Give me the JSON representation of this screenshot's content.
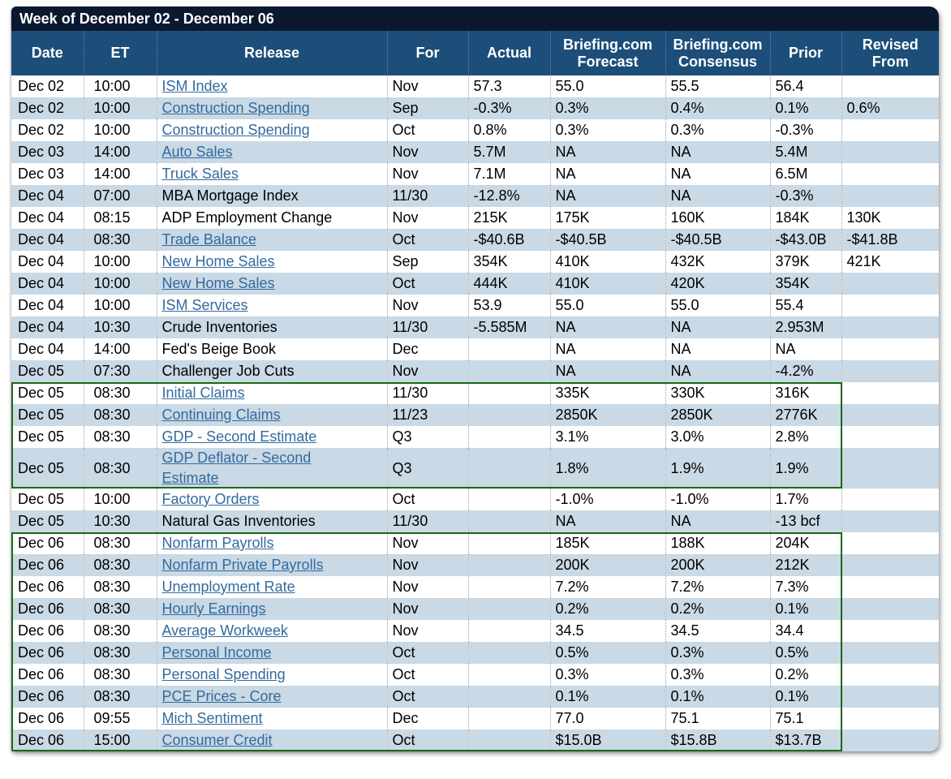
{
  "calendar": {
    "title": "Week of December 02 - December 06",
    "columns": [
      [
        "Date"
      ],
      [
        "ET"
      ],
      [
        "Release"
      ],
      [
        "For"
      ],
      [
        "Actual"
      ],
      [
        "Briefing.com",
        "Forecast"
      ],
      [
        "Briefing.com",
        "Consensus"
      ],
      [
        "Prior"
      ],
      [
        "Revised",
        "From"
      ]
    ],
    "rows": [
      {
        "date": "Dec 02",
        "et": "10:00",
        "release": "ISM Index",
        "is_link": true,
        "for_period": "Nov",
        "actual": "57.3",
        "forecast": "55.0",
        "consensus": "55.5",
        "prior": "56.4",
        "revised_from": ""
      },
      {
        "date": "Dec 02",
        "et": "10:00",
        "release": "Construction Spending",
        "is_link": true,
        "for_period": "Sep",
        "actual": "-0.3%",
        "forecast": "0.3%",
        "consensus": "0.4%",
        "prior": "0.1%",
        "revised_from": "0.6%"
      },
      {
        "date": "Dec 02",
        "et": "10:00",
        "release": "Construction Spending",
        "is_link": true,
        "for_period": "Oct",
        "actual": "0.8%",
        "forecast": "0.3%",
        "consensus": "0.3%",
        "prior": "-0.3%",
        "revised_from": ""
      },
      {
        "date": "Dec 03",
        "et": "14:00",
        "release": "Auto Sales",
        "is_link": true,
        "for_period": "Nov",
        "actual": "5.7M",
        "forecast": "NA",
        "consensus": "NA",
        "prior": "5.4M",
        "revised_from": ""
      },
      {
        "date": "Dec 03",
        "et": "14:00",
        "release": "Truck Sales",
        "is_link": true,
        "for_period": "Nov",
        "actual": "7.1M",
        "forecast": "NA",
        "consensus": "NA",
        "prior": "6.5M",
        "revised_from": ""
      },
      {
        "date": "Dec 04",
        "et": "07:00",
        "release": "MBA Mortgage Index",
        "is_link": false,
        "for_period": "11/30",
        "actual": "-12.8%",
        "forecast": "NA",
        "consensus": "NA",
        "prior": "-0.3%",
        "revised_from": ""
      },
      {
        "date": "Dec 04",
        "et": "08:15",
        "release": "ADP Employment Change",
        "is_link": false,
        "for_period": "Nov",
        "actual": "215K",
        "forecast": "175K",
        "consensus": "160K",
        "prior": "184K",
        "revised_from": "130K"
      },
      {
        "date": "Dec 04",
        "et": "08:30",
        "release": "Trade Balance",
        "is_link": true,
        "for_period": "Oct",
        "actual": "-$40.6B",
        "forecast": "-$40.5B",
        "consensus": "-$40.5B",
        "prior": "-$43.0B",
        "revised_from": "-$41.8B"
      },
      {
        "date": "Dec 04",
        "et": "10:00",
        "release": "New Home Sales",
        "is_link": true,
        "for_period": "Sep",
        "actual": "354K",
        "forecast": "410K",
        "consensus": "432K",
        "prior": "379K",
        "revised_from": "421K"
      },
      {
        "date": "Dec 04",
        "et": "10:00",
        "release": "New Home Sales",
        "is_link": true,
        "for_period": "Oct",
        "actual": "444K",
        "forecast": "410K",
        "consensus": "420K",
        "prior": "354K",
        "revised_from": ""
      },
      {
        "date": "Dec 04",
        "et": "10:00",
        "release": "ISM Services",
        "is_link": true,
        "for_period": "Nov",
        "actual": "53.9",
        "forecast": "55.0",
        "consensus": "55.0",
        "prior": "55.4",
        "revised_from": ""
      },
      {
        "date": "Dec 04",
        "et": "10:30",
        "release": "Crude Inventories",
        "is_link": false,
        "for_period": "11/30",
        "actual": "-5.585M",
        "forecast": "NA",
        "consensus": "NA",
        "prior": "2.953M",
        "revised_from": ""
      },
      {
        "date": "Dec 04",
        "et": "14:00",
        "release": "Fed's Beige Book",
        "is_link": false,
        "for_period": "Dec",
        "actual": "",
        "forecast": "NA",
        "consensus": "NA",
        "prior": "NA",
        "revised_from": ""
      },
      {
        "date": "Dec 05",
        "et": "07:30",
        "release": "Challenger Job Cuts",
        "is_link": false,
        "for_period": "Nov",
        "actual": "",
        "forecast": "NA",
        "consensus": "NA",
        "prior": "-4.2%",
        "revised_from": ""
      },
      {
        "date": "Dec 05",
        "et": "08:30",
        "release": "Initial Claims",
        "is_link": true,
        "for_period": "11/30",
        "actual": "",
        "forecast": "335K",
        "consensus": "330K",
        "prior": "316K",
        "revised_from": ""
      },
      {
        "date": "Dec 05",
        "et": "08:30",
        "release": "Continuing Claims",
        "is_link": true,
        "for_period": "11/23",
        "actual": "",
        "forecast": "2850K",
        "consensus": "2850K",
        "prior": "2776K",
        "revised_from": ""
      },
      {
        "date": "Dec 05",
        "et": "08:30",
        "release": "GDP - Second Estimate",
        "is_link": true,
        "for_period": "Q3",
        "actual": "",
        "forecast": "3.1%",
        "consensus": "3.0%",
        "prior": "2.8%",
        "revised_from": ""
      },
      {
        "date": "Dec 05",
        "et": "08:30",
        "release": "GDP Deflator - Second Estimate",
        "is_link": true,
        "for_period": "Q3",
        "actual": "",
        "forecast": "1.8%",
        "consensus": "1.9%",
        "prior": "1.9%",
        "revised_from": ""
      },
      {
        "date": "Dec 05",
        "et": "10:00",
        "release": "Factory Orders",
        "is_link": true,
        "for_period": "Oct",
        "actual": "",
        "forecast": "-1.0%",
        "consensus": "-1.0%",
        "prior": "1.7%",
        "revised_from": ""
      },
      {
        "date": "Dec 05",
        "et": "10:30",
        "release": "Natural Gas Inventories",
        "is_link": false,
        "for_period": "11/30",
        "actual": "",
        "forecast": "NA",
        "consensus": "NA",
        "prior": "-13 bcf",
        "revised_from": ""
      },
      {
        "date": "Dec 06",
        "et": "08:30",
        "release": "Nonfarm Payrolls",
        "is_link": true,
        "for_period": "Nov",
        "actual": "",
        "forecast": "185K",
        "consensus": "188K",
        "prior": "204K",
        "revised_from": ""
      },
      {
        "date": "Dec 06",
        "et": "08:30",
        "release": "Nonfarm Private Payrolls",
        "is_link": true,
        "for_period": "Nov",
        "actual": "",
        "forecast": "200K",
        "consensus": "200K",
        "prior": "212K",
        "revised_from": ""
      },
      {
        "date": "Dec 06",
        "et": "08:30",
        "release": "Unemployment Rate",
        "is_link": true,
        "for_period": "Nov",
        "actual": "",
        "forecast": "7.2%",
        "consensus": "7.2%",
        "prior": "7.3%",
        "revised_from": ""
      },
      {
        "date": "Dec 06",
        "et": "08:30",
        "release": "Hourly Earnings",
        "is_link": true,
        "for_period": "Nov",
        "actual": "",
        "forecast": "0.2%",
        "consensus": "0.2%",
        "prior": "0.1%",
        "revised_from": ""
      },
      {
        "date": "Dec 06",
        "et": "08:30",
        "release": "Average Workweek",
        "is_link": true,
        "for_period": "Nov",
        "actual": "",
        "forecast": "34.5",
        "consensus": "34.5",
        "prior": "34.4",
        "revised_from": ""
      },
      {
        "date": "Dec 06",
        "et": "08:30",
        "release": "Personal Income",
        "is_link": true,
        "for_period": "Oct",
        "actual": "",
        "forecast": "0.5%",
        "consensus": "0.3%",
        "prior": "0.5%",
        "revised_from": ""
      },
      {
        "date": "Dec 06",
        "et": "08:30",
        "release": "Personal Spending",
        "is_link": true,
        "for_period": "Oct",
        "actual": "",
        "forecast": "0.3%",
        "consensus": "0.3%",
        "prior": "0.2%",
        "revised_from": ""
      },
      {
        "date": "Dec 06",
        "et": "08:30",
        "release": "PCE Prices - Core",
        "is_link": true,
        "for_period": "Oct",
        "actual": "",
        "forecast": "0.1%",
        "consensus": "0.1%",
        "prior": "0.1%",
        "revised_from": ""
      },
      {
        "date": "Dec 06",
        "et": "09:55",
        "release": "Mich Sentiment",
        "is_link": true,
        "for_period": "Dec",
        "actual": "",
        "forecast": "77.0",
        "consensus": "75.1",
        "prior": "75.1",
        "revised_from": ""
      },
      {
        "date": "Dec 06",
        "et": "15:00",
        "release": "Consumer Credit",
        "is_link": true,
        "for_period": "Oct",
        "actual": "",
        "forecast": "$15.0B",
        "consensus": "$15.8B",
        "prior": "$13.7B",
        "revised_from": ""
      }
    ],
    "highlights": [
      {
        "first_row": 14,
        "last_row": 17
      },
      {
        "first_row": 20,
        "last_row": 29
      }
    ],
    "colors": {
      "title_bar_bg": "#0a1830",
      "header_bg": "#1c4e79",
      "row_alt_bg": "#c9d9e5",
      "link_color": "#336a9e",
      "highlight_border": "#176917"
    }
  }
}
